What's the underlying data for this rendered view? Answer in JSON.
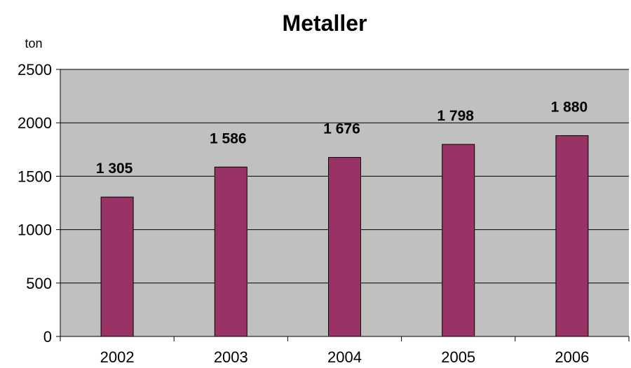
{
  "chart_data": {
    "type": "bar",
    "title": "Metaller",
    "ylabel": "ton",
    "xlabel": "",
    "categories": [
      "2002",
      "2003",
      "2004",
      "2005",
      "2006"
    ],
    "values": [
      1305,
      1586,
      1676,
      1798,
      1880
    ],
    "data_labels": [
      "1 305",
      "1 586",
      "1 676",
      "1 798",
      "1 880"
    ],
    "ylim": [
      0,
      2500
    ],
    "yticks": [
      0,
      500,
      1000,
      1500,
      2000,
      2500
    ],
    "ytick_labels": [
      "0",
      "500",
      "1000",
      "1500",
      "2000",
      "2500"
    ],
    "grid": true,
    "legend": "none",
    "colors": {
      "bar_fill": "#993366",
      "bar_stroke": "#000000",
      "plot_background": "#c0c0c0",
      "gridline": "#000000"
    }
  }
}
